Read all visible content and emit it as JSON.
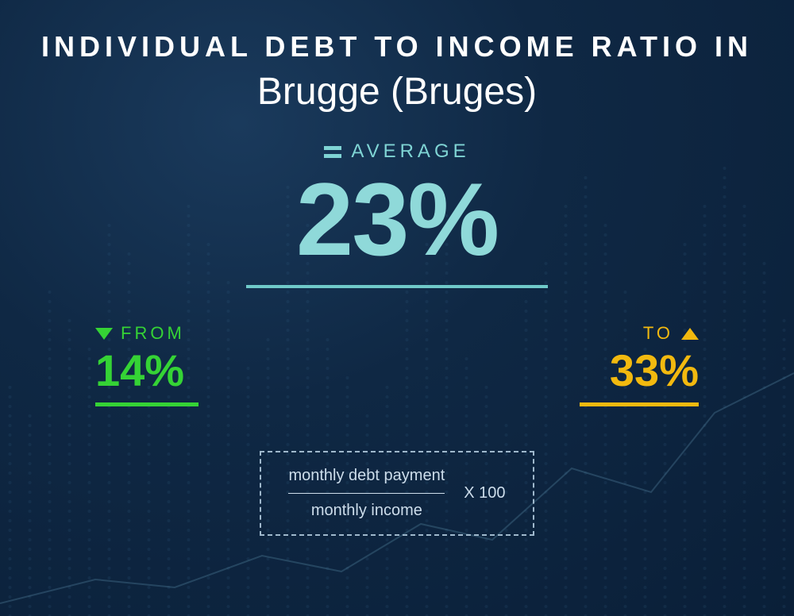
{
  "background": {
    "gradient_from": "#1a3a5c",
    "gradient_mid": "#0f2844",
    "gradient_to": "#0a1f38"
  },
  "title": {
    "line1": "INDIVIDUAL  DEBT  TO  INCOME RATIO  IN",
    "line2": "Brugge (Bruges)",
    "color": "#ffffff",
    "line1_fontsize": 36,
    "line2_fontsize": 48
  },
  "average": {
    "label": "AVERAGE",
    "value": "23%",
    "label_color": "#7fd4d4",
    "label_fontsize": 24,
    "value_color": "#8fd9d9",
    "value_fontsize": 130,
    "underline_color": "#6fc9c9",
    "underline_width": 380
  },
  "range": {
    "from": {
      "label": "FROM",
      "value": "14%",
      "color": "#35d335",
      "label_fontsize": 22,
      "value_fontsize": 56,
      "underline_width": 130
    },
    "to": {
      "label": "TO",
      "value": "33%",
      "color": "#f2b90f",
      "label_fontsize": 22,
      "value_fontsize": 56,
      "underline_width": 150
    }
  },
  "formula": {
    "numerator": "monthly debt payment",
    "denominator": "monthly income",
    "multiplier": "X 100",
    "fontsize": 20,
    "border_color": "#9fb8cc",
    "text_color": "#cdddeb"
  },
  "decor": {
    "dot_color": "#3a6a8f",
    "line_color": "#6fa8c4"
  }
}
